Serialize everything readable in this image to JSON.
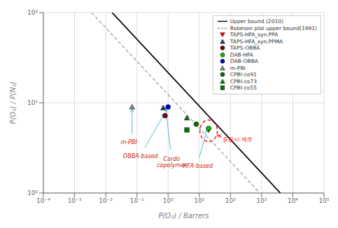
{
  "chart_data": {
    "type": "scatter",
    "xlabel": "P(O₂) / Barrers",
    "ylabel": "P(O₂) / P(N₂)",
    "log": true,
    "xlim": [
      0.0001,
      100000
    ],
    "ylim": [
      1,
      100
    ],
    "xticks": [
      {
        "value": 0.0001,
        "label": "10⁻⁴"
      },
      {
        "value": 0.001,
        "label": "10⁻³"
      },
      {
        "value": 0.01,
        "label": "10⁻²"
      },
      {
        "value": 0.1,
        "label": "10⁻¹"
      },
      {
        "value": 1,
        "label": "10⁰"
      },
      {
        "value": 10,
        "label": "10¹"
      },
      {
        "value": 100,
        "label": "10²"
      },
      {
        "value": 1000,
        "label": "10³"
      },
      {
        "value": 10000,
        "label": "10⁴"
      },
      {
        "value": 100000,
        "label": "10⁵"
      }
    ],
    "yticks": [
      {
        "value": 1,
        "label": "10⁰"
      },
      {
        "value": 10,
        "label": "10¹"
      },
      {
        "value": 100,
        "label": "10²"
      }
    ],
    "grid": true,
    "legend": "upper right",
    "series": [
      {
        "name": "Upper bound (2010)",
        "type": "line",
        "color": "#000000",
        "line_style": "solid",
        "x": [
          0.01594,
          3986
        ],
        "values": [
          100,
          1
        ]
      },
      {
        "name": "Robeson plot upper bound(1991)",
        "type": "line",
        "color": "#999999",
        "line_style": "dashed",
        "x": [
          0.003498,
          874.9
        ],
        "values": [
          100,
          1
        ]
      },
      {
        "name": "TAPS-HFA_syn.PPA",
        "type": "scatter",
        "marker": "triangle_down",
        "color": "#EE0000",
        "x": [
          20
        ],
        "values": [
          5.0
        ]
      },
      {
        "name": "TAPS-HFA_syn.PPMA",
        "type": "scatter",
        "marker": "triangle_up",
        "color": "#1a3a6e",
        "x": [
          0.7
        ],
        "values": [
          8.8
        ]
      },
      {
        "name": "TAPS-OBBA",
        "type": "scatter",
        "marker": "circle",
        "color": "#7B0000",
        "x": [
          0.8
        ],
        "values": [
          7.2
        ]
      },
      {
        "name": "DAB-HFA",
        "type": "scatter",
        "marker": "circle",
        "color": "#00BB00",
        "x": [
          20
        ],
        "values": [
          5.2
        ]
      },
      {
        "name": "DAB-OBBA",
        "type": "scatter",
        "marker": "circle",
        "color": "#0000CC",
        "x": [
          1.0
        ],
        "values": [
          9.0
        ]
      },
      {
        "name": "m-PBI",
        "type": "scatter",
        "marker": "triangle_up",
        "color": "#888888",
        "x": [
          0.07
        ],
        "values": [
          9.0
        ]
      },
      {
        "name": "CPBI-co91",
        "type": "scatter",
        "marker": "circle",
        "color": "#007700",
        "x": [
          8
        ],
        "values": [
          5.8
        ]
      },
      {
        "name": "CPBI-co73",
        "type": "scatter",
        "marker": "triangle_up",
        "color": "#007700",
        "x": [
          4
        ],
        "values": [
          6.8
        ]
      },
      {
        "name": "CPBI-co55",
        "type": "scatter",
        "marker": "square",
        "color": "#007700",
        "x": [
          4
        ],
        "values": [
          5.0
        ]
      }
    ],
    "ellipse": {
      "color": "#ff0000",
      "line_style": "dashed",
      "xlim": [
        10.4713,
        38.0189
      ],
      "ylim": [
        3.7154,
        6.4565
      ]
    },
    "annotations": [
      {
        "text": "중공사 제조",
        "x": 56.23,
        "y": 3.981,
        "color": "#ff0000",
        "arrow_from": [
          52.48,
          4.169
        ],
        "arrow_to": [
          38.02,
          4.365
        ],
        "arrow_color": "#ff0000"
      },
      {
        "text": "m-PBI",
        "x": 0.055,
        "y": 4.0,
        "color": "#CC2200",
        "arrow_from": [
          0.07,
          4.5
        ],
        "arrow_to": [
          0.07,
          8.5
        ],
        "arrow_color": "#55BBDD"
      },
      {
        "text": "OBBA-based",
        "x": 0.13,
        "y": 2.8,
        "color": "#CC2200",
        "arrow_from": [
          0.18,
          3.2
        ],
        "arrow_to": [
          0.75,
          7.5
        ],
        "arrow_color": "#55BBDD"
      },
      {
        "text": "Cardo\ncopolymer",
        "x": 1.3,
        "y": 2.6,
        "color": "#CC2200",
        "arrow_from": [
          1.2,
          3.0
        ],
        "arrow_to": [
          0.85,
          8.5
        ],
        "arrow_color": "#55BBDD"
      },
      {
        "text": "HFA-based",
        "x": 9.0,
        "y": 2.2,
        "color": "#CC2200",
        "arrow_from": [
          10,
          2.5
        ],
        "arrow_to": [
          18,
          5.1
        ],
        "arrow_color": "#55BBDD"
      }
    ]
  }
}
